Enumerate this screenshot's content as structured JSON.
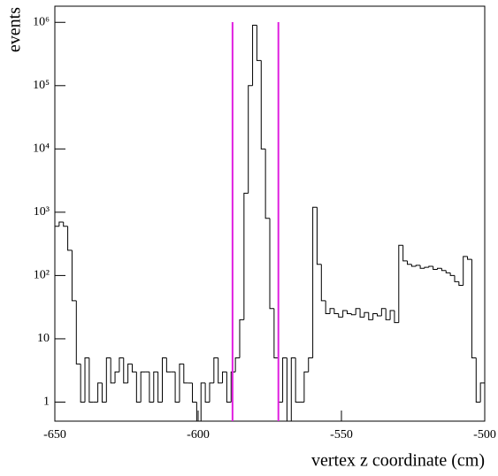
{
  "chart_data": {
    "type": "histogram",
    "x_label": "vertex z coordinate (cm)",
    "y_label": "events",
    "log_y": true,
    "color": "#000000",
    "bins": [
      -650,
      -648.5,
      -647,
      -645.5,
      -644,
      -642.5,
      -641,
      -639.5,
      -638,
      -636.5,
      -635,
      -633.5,
      -632,
      -630.5,
      -629,
      -627.5,
      -626,
      -624.5,
      -623,
      -621.5,
      -620,
      -618.5,
      -617,
      -615.5,
      -614,
      -612.5,
      -611,
      -609.5,
      -608,
      -606.5,
      -605,
      -603.5,
      -602,
      -600.5,
      -599,
      -597.5,
      -596,
      -594.5,
      -593,
      -591.5,
      -590,
      -588.5,
      -587,
      -585.5,
      -584,
      -582.5,
      -581,
      -579.5,
      -578,
      -576.5,
      -575,
      -573.5,
      -572,
      -570.5,
      -569,
      -567.5,
      -566,
      -564.5,
      -563,
      -561.5,
      -560,
      -558.5,
      -557,
      -555.5,
      -554,
      -552.5,
      -551,
      -549.5,
      -548,
      -546.5,
      -545,
      -543.5,
      -542,
      -540.5,
      -539,
      -537.5,
      -536,
      -534.5,
      -533,
      -531.5,
      -530,
      -528.5,
      -527,
      -525.5,
      -524,
      -522.5,
      -521,
      -519.5,
      -518,
      -516.5,
      -515,
      -513.5,
      -512,
      -510.5,
      -509,
      -507.5,
      -506,
      -504.5,
      -503,
      -501.5,
      -500
    ],
    "values": [
      600,
      700,
      600,
      250,
      40,
      4,
      1,
      5,
      1,
      1,
      2,
      1,
      5,
      2,
      3,
      5,
      2,
      4,
      3,
      1,
      3,
      3,
      1,
      3,
      1,
      5,
      3,
      3,
      1,
      4,
      2,
      2,
      1,
      0,
      2,
      1,
      2,
      5,
      2,
      3,
      1,
      3,
      5,
      20,
      2000,
      100000,
      900000,
      250000,
      10000,
      800,
      30,
      5,
      1,
      5,
      0,
      5,
      1,
      1,
      3,
      5,
      1200,
      150,
      40,
      25,
      30,
      25,
      22,
      28,
      25,
      24,
      30,
      22,
      26,
      20,
      25,
      23,
      30,
      20,
      28,
      18,
      300,
      170,
      150,
      140,
      145,
      130,
      135,
      140,
      125,
      130,
      120,
      110,
      100,
      80,
      70,
      200,
      180,
      5,
      1,
      2
    ],
    "cut_lines": [
      -588,
      -572
    ],
    "cut_line_color": "#e020e0",
    "xlim": [
      -650,
      -500
    ],
    "xticks": [
      -650,
      -600,
      -550,
      -500
    ],
    "ylim": [
      0.5,
      1800000
    ],
    "yticks": [
      1,
      10,
      {
        "value": 100,
        "label": "10²"
      },
      {
        "value": 1000,
        "label": "10³"
      },
      {
        "value": 10000,
        "label": "10⁴"
      },
      {
        "value": 100000,
        "label": "10⁵"
      },
      {
        "value": 1000000,
        "label": "10⁶"
      }
    ]
  }
}
